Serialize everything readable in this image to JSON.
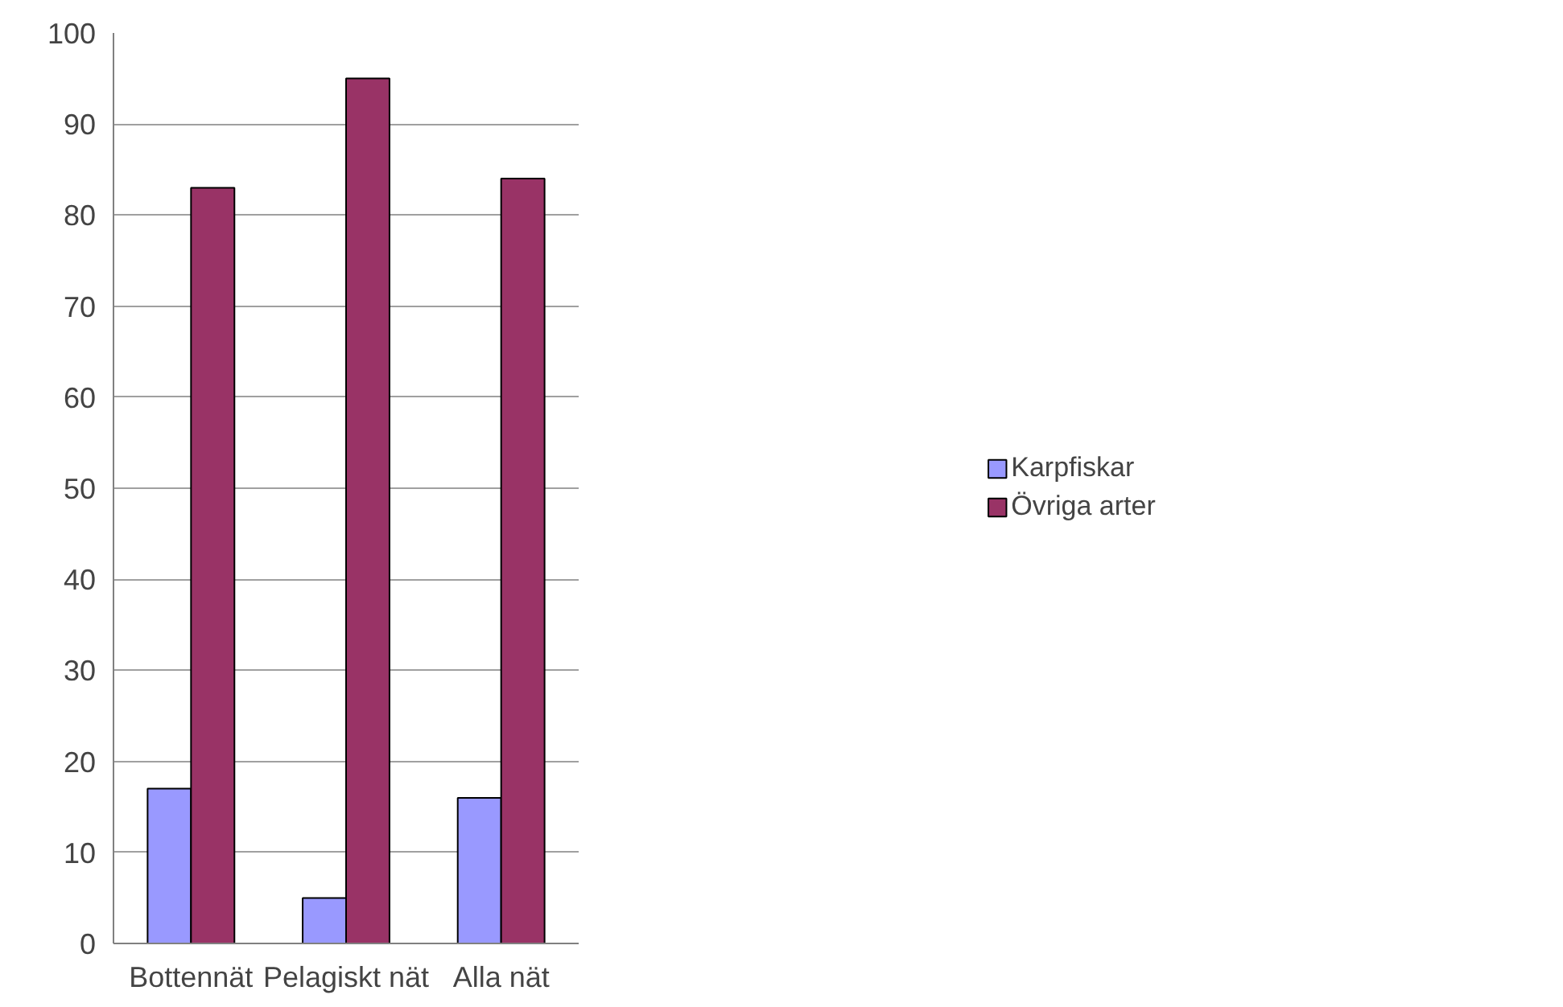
{
  "chart_data": {
    "type": "bar",
    "categories": [
      "Bottennät",
      "Pelagiskt nät",
      "Alla nät"
    ],
    "series": [
      {
        "name": "Karpfiskar",
        "color": "#9999ff",
        "values": [
          17,
          5,
          16
        ]
      },
      {
        "name": "Övriga arter",
        "color": "#993366",
        "values": [
          83,
          95,
          84
        ]
      }
    ],
    "ylim": [
      0,
      100
    ],
    "yticks": [
      0,
      10,
      20,
      30,
      40,
      50,
      60,
      70,
      80,
      90,
      100
    ],
    "grid": "y",
    "legend": "right"
  }
}
